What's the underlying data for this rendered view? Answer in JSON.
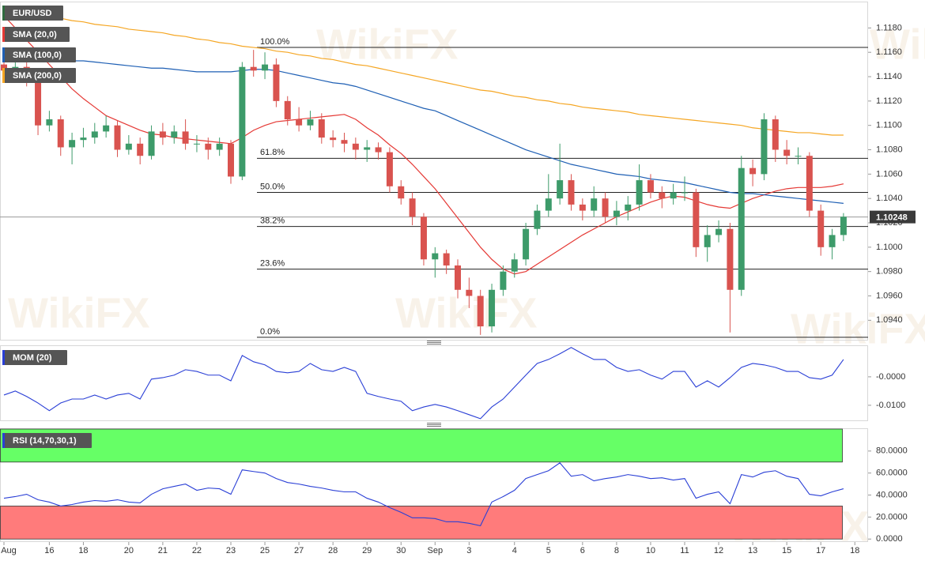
{
  "watermark": "WikiFX",
  "chart_data": [
    {
      "type": "candlestick",
      "title": "EUR/USD",
      "categories": [
        "Aug",
        null,
        null,
        null,
        "16",
        null,
        null,
        "18",
        null,
        null,
        null,
        "20",
        null,
        null,
        "21",
        null,
        null,
        "22",
        null,
        null,
        "23",
        null,
        null,
        "25",
        null,
        null,
        "27",
        null,
        null,
        "28",
        null,
        null,
        "29",
        null,
        null,
        "30",
        null,
        null,
        "Sep",
        null,
        null,
        "3",
        null,
        null,
        null,
        "4",
        null,
        null,
        "5",
        null,
        null,
        "6",
        null,
        null,
        "8",
        null,
        null,
        "10",
        null,
        null,
        "11",
        null,
        null,
        "12",
        null,
        null,
        "13",
        null,
        null,
        "15",
        null,
        null,
        "17",
        null,
        null,
        "18"
      ],
      "open": [
        1.115,
        1.1145,
        1.1148,
        1.114,
        1.11,
        1.1105,
        1.1082,
        1.1088,
        1.109,
        1.1095,
        1.11,
        1.108,
        1.1085,
        1.1075,
        1.1095,
        1.109,
        1.1095,
        1.1085,
        1.1085,
        1.108,
        1.1085,
        1.1058,
        1.1148,
        1.1145,
        1.115,
        1.112,
        1.1105,
        1.11,
        1.1105,
        1.109,
        1.1088,
        1.1085,
        1.108,
        1.1082,
        1.1078,
        1.105,
        1.104,
        1.1025,
        1.099,
        1.0995,
        1.0985,
        1.0965,
        1.096,
        1.0935,
        1.0965,
        1.098,
        1.099,
        1.1015,
        1.103,
        1.104,
        1.1055,
        1.1035,
        1.103,
        1.104,
        1.1025,
        1.103,
        1.1035,
        1.1055,
        1.1045,
        1.104,
        1.1045,
        1.1045,
        1.1,
        1.101,
        1.1015,
        1.0965,
        1.1065,
        1.106,
        1.1105,
        1.108,
        1.1075,
        1.1075,
        1.103,
        1.1,
        1.101,
        null
      ],
      "high": [
        1.1158,
        1.1155,
        1.1152,
        1.1142,
        1.1112,
        1.1108,
        1.1094,
        1.1098,
        1.1102,
        1.1108,
        1.1104,
        1.1092,
        1.109,
        1.11,
        1.1102,
        1.11,
        1.1105,
        1.1092,
        1.109,
        1.109,
        1.1088,
        1.1152,
        1.1162,
        1.116,
        1.1155,
        1.1124,
        1.1115,
        1.1112,
        1.111,
        1.1096,
        1.1094,
        1.109,
        1.1088,
        1.1086,
        1.1082,
        1.1055,
        1.1045,
        1.1028,
        1.1,
        1.0998,
        1.099,
        1.0975,
        1.0965,
        1.097,
        1.0985,
        1.0995,
        1.102,
        1.1035,
        1.106,
        1.1085,
        1.106,
        1.104,
        1.105,
        1.1045,
        1.1038,
        1.1042,
        1.1068,
        1.106,
        1.105,
        1.1052,
        1.1058,
        1.1048,
        1.1018,
        1.1022,
        1.102,
        1.1075,
        1.1072,
        1.111,
        1.1108,
        1.1088,
        1.1082,
        1.1078,
        1.1035,
        1.1015,
        1.1028,
        null
      ],
      "low": [
        1.1135,
        1.114,
        1.1132,
        1.1092,
        1.1095,
        1.1075,
        1.1068,
        1.1082,
        1.1085,
        1.109,
        1.1074,
        1.1076,
        1.1068,
        1.1072,
        1.1084,
        1.1085,
        1.108,
        1.1078,
        1.1072,
        1.1075,
        1.1052,
        1.1055,
        1.114,
        1.1138,
        1.1115,
        1.11,
        1.1095,
        1.1096,
        1.1085,
        1.1082,
        1.1078,
        1.1072,
        1.107,
        1.1072,
        1.1045,
        1.1035,
        1.1018,
        1.0985,
        1.0975,
        1.0978,
        1.0958,
        1.095,
        1.0928,
        1.093,
        1.096,
        1.0975,
        1.0985,
        1.101,
        1.1025,
        1.1035,
        1.103,
        1.1022,
        1.1025,
        1.102,
        1.1018,
        1.1022,
        1.103,
        1.104,
        1.1032,
        1.1035,
        1.1038,
        1.0992,
        1.0988,
        1.1004,
        1.093,
        1.096,
        1.105,
        1.1055,
        1.107,
        1.1068,
        1.1068,
        1.1025,
        1.0993,
        1.099,
        1.1005,
        null
      ],
      "close": [
        1.1145,
        1.1148,
        1.114,
        1.11,
        1.1105,
        1.1082,
        1.1088,
        1.109,
        1.1095,
        1.11,
        1.108,
        1.1085,
        1.1075,
        1.1095,
        1.109,
        1.1095,
        1.1085,
        1.1085,
        1.108,
        1.1085,
        1.1058,
        1.1148,
        1.1145,
        1.115,
        1.112,
        1.1105,
        1.11,
        1.1105,
        1.109,
        1.1088,
        1.1085,
        1.108,
        1.1082,
        1.1078,
        1.105,
        1.104,
        1.1025,
        1.099,
        1.0995,
        1.0985,
        1.0965,
        1.096,
        1.0935,
        1.0965,
        1.098,
        1.099,
        1.1015,
        1.103,
        1.104,
        1.1055,
        1.1035,
        1.103,
        1.104,
        1.1025,
        1.103,
        1.1035,
        1.1055,
        1.1045,
        1.104,
        1.1045,
        1.1045,
        1.1,
        1.101,
        1.1015,
        1.0965,
        1.1065,
        1.106,
        1.1105,
        1.108,
        1.1075,
        1.1075,
        1.103,
        1.1,
        1.101,
        1.1025,
        null
      ],
      "up_color": "#3d9b6a",
      "down_color": "#d9534f",
      "series": [
        {
          "name": "SMA (20,0)",
          "color": "#e53935",
          "values": [
            1.119,
            1.118,
            1.117,
            1.116,
            1.115,
            1.114,
            1.113,
            1.1122,
            1.1115,
            1.1108,
            1.1104,
            1.11,
            1.1096,
            1.1093,
            1.1092,
            1.109,
            1.1089,
            1.1088,
            1.1087,
            1.1086,
            1.1085,
            1.109,
            1.1096,
            1.11,
            1.1103,
            1.1104,
            1.1105,
            1.1106,
            1.1107,
            1.1108,
            1.1109,
            1.1105,
            1.1098,
            1.1092,
            1.1084,
            1.1077,
            1.1068,
            1.1058,
            1.1048,
            1.1036,
            1.1024,
            1.1012,
            1.1,
            1.099,
            1.0982,
            1.0978,
            1.098,
            1.0986,
            1.0992,
            1.0998,
            1.1004,
            1.101,
            1.1015,
            1.102,
            1.1025,
            1.1029,
            1.1033,
            1.1037,
            1.104,
            1.1042,
            1.1041,
            1.1038,
            1.1035,
            1.1033,
            1.1032,
            1.1036,
            1.104,
            1.1043,
            1.1046,
            1.1048,
            1.1049,
            1.1049,
            1.1049,
            1.105,
            1.1052,
            null
          ]
        },
        {
          "name": "SMA (100,0)",
          "color": "#1e5fb4",
          "values": [
            1.1159,
            1.1158,
            1.1157,
            1.1156,
            1.1155,
            1.1154,
            1.1153,
            1.1153,
            1.1152,
            1.1151,
            1.115,
            1.1149,
            1.1148,
            1.1147,
            1.1147,
            1.1146,
            1.1145,
            1.1144,
            1.1144,
            1.1144,
            1.1144,
            1.1145,
            1.1146,
            1.1146,
            1.1145,
            1.1143,
            1.1141,
            1.1139,
            1.1137,
            1.1135,
            1.1134,
            1.1132,
            1.1129,
            1.1126,
            1.1123,
            1.112,
            1.1117,
            1.1114,
            1.1112,
            1.1108,
            1.1104,
            1.11,
            1.1096,
            1.1092,
            1.1088,
            1.1084,
            1.108,
            1.1077,
            1.1074,
            1.1071,
            1.1068,
            1.1066,
            1.1064,
            1.1062,
            1.106,
            1.1059,
            1.1058,
            1.1056,
            1.1055,
            1.1054,
            1.1053,
            1.1051,
            1.1049,
            1.1047,
            1.1045,
            1.1044,
            1.1044,
            1.1043,
            1.1042,
            1.1041,
            1.104,
            1.1039,
            1.1038,
            1.1037,
            1.1036,
            null
          ]
        },
        {
          "name": "SMA (200,0)",
          "color": "#f5a623",
          "values": [
            1.1198,
            1.1196,
            1.1194,
            1.1192,
            1.119,
            1.1188,
            1.1186,
            1.1185,
            1.1183,
            1.1182,
            1.1181,
            1.1179,
            1.1178,
            1.1177,
            1.1176,
            1.1174,
            1.1173,
            1.1171,
            1.117,
            1.1168,
            1.1167,
            1.1165,
            1.1164,
            1.1163,
            1.1161,
            1.116,
            1.1158,
            1.1157,
            1.1155,
            1.1154,
            1.1152,
            1.115,
            1.1149,
            1.1147,
            1.1145,
            1.1143,
            1.1141,
            1.1139,
            1.1137,
            1.1135,
            1.1133,
            1.1131,
            1.1129,
            1.1128,
            1.1126,
            1.1124,
            1.1123,
            1.1121,
            1.112,
            1.1118,
            1.1117,
            1.1115,
            1.1114,
            1.1113,
            1.1112,
            1.1111,
            1.1109,
            1.1108,
            1.1107,
            1.1106,
            1.1105,
            1.1104,
            1.1103,
            1.1102,
            1.1101,
            1.11,
            1.1098,
            1.1097,
            1.1096,
            1.1095,
            1.1094,
            1.1094,
            1.1093,
            1.1092,
            1.1092,
            null
          ]
        }
      ],
      "fib_levels": [
        {
          "level": "100.0%",
          "price": 1.1164
        },
        {
          "level": "61.8%",
          "price": 1.1073
        },
        {
          "level": "50.0%",
          "price": 1.1045
        },
        {
          "level": "38.2%",
          "price": 1.1017
        },
        {
          "level": "23.6%",
          "price": 1.0982
        },
        {
          "level": "0.0%",
          "price": 1.0926
        }
      ],
      "last_price": 1.10248,
      "ylim": [
        1.0924,
        1.1201
      ],
      "yticks": [
        {
          "value": 1.094,
          "label": "1.0940"
        },
        {
          "value": 1.096,
          "label": "1.0960"
        },
        {
          "value": 1.098,
          "label": "1.0980"
        },
        {
          "value": 1.1,
          "label": "1.1000"
        },
        {
          "value": 1.102,
          "label": "1.1020"
        },
        {
          "value": 1.104,
          "label": "1.1040"
        },
        {
          "value": 1.106,
          "label": "1.1060"
        },
        {
          "value": 1.108,
          "label": "1.1080"
        },
        {
          "value": 1.11,
          "label": "1.1100"
        },
        {
          "value": 1.112,
          "label": "1.1120"
        },
        {
          "value": 1.114,
          "label": "1.1140"
        },
        {
          "value": 1.116,
          "label": "1.1160"
        },
        {
          "value": 1.118,
          "label": "1.1180"
        }
      ]
    },
    {
      "type": "line",
      "title": "MOM (20)",
      "color": "#2a3fd6",
      "values": [
        -0.0064,
        -0.005,
        -0.0069,
        -0.0092,
        -0.0119,
        -0.0092,
        -0.0078,
        -0.0078,
        -0.0064,
        -0.0078,
        -0.0064,
        -0.0058,
        -0.0078,
        -0.0008,
        -0.0003,
        0.0006,
        0.0025,
        0.0019,
        0.0006,
        0.0006,
        -0.0014,
        0.0075,
        0.0053,
        0.0042,
        0.0019,
        0.0014,
        0.0019,
        0.0047,
        0.0025,
        0.0019,
        0.0033,
        0.0019,
        -0.0058,
        -0.0069,
        -0.0078,
        -0.0086,
        -0.0119,
        -0.0106,
        -0.0097,
        -0.0106,
        -0.0119,
        -0.0133,
        -0.0147,
        -0.0106,
        -0.0078,
        -0.0036,
        0.0006,
        0.0047,
        0.0061,
        0.0081,
        0.0103,
        0.0081,
        0.0061,
        0.0061,
        0.0033,
        0.0019,
        0.0025,
        0.0006,
        -0.0008,
        0.0019,
        0.0019,
        -0.0036,
        -0.0014,
        -0.0036,
        -0.0003,
        0.0033,
        0.0047,
        0.0042,
        0.0033,
        0.0019,
        0.0019,
        -0.0003,
        -0.0008,
        0.0006,
        0.0061,
        null
      ],
      "ylim": [
        -0.0153,
        0.0108
      ],
      "yticks": [
        {
          "value": 0,
          "label": "-0.0000"
        },
        {
          "value": -0.01,
          "label": "-0.0100"
        }
      ]
    },
    {
      "type": "line",
      "title": "RSI (14,70,30,1)",
      "color": "#2a3fd6",
      "values": [
        37.1,
        38.6,
        40.7,
        35.7,
        33.6,
        30.0,
        31.4,
        33.6,
        35.0,
        34.3,
        35.7,
        33.6,
        32.9,
        40.7,
        45.7,
        47.9,
        50.0,
        44.3,
        46.4,
        45.7,
        40.7,
        62.9,
        61.4,
        60.0,
        55.0,
        51.4,
        50.0,
        47.9,
        46.4,
        44.3,
        42.9,
        42.9,
        37.1,
        33.6,
        28.6,
        24.3,
        19.3,
        19.3,
        18.6,
        15.7,
        15.7,
        14.3,
        12.1,
        33.6,
        38.6,
        44.3,
        55.0,
        58.6,
        62.1,
        69.3,
        57.1,
        58.6,
        52.9,
        55.0,
        56.4,
        58.6,
        57.1,
        55.0,
        55.7,
        53.6,
        55.0,
        37.1,
        40.7,
        42.9,
        32.1,
        58.6,
        56.4,
        60.7,
        62.1,
        57.1,
        55.0,
        40.7,
        39.3,
        42.9,
        45.7,
        null
      ],
      "bands": [
        {
          "from": 70,
          "to": 100,
          "color": "#66ff66"
        },
        {
          "from": 0,
          "to": 30,
          "color": "#ff7b7b"
        }
      ],
      "ylim": [
        -2,
        100
      ],
      "yticks": [
        {
          "value": 80,
          "label": "80.0000"
        },
        {
          "value": 60,
          "label": "60.0000"
        },
        {
          "value": 40,
          "label": "40.0000"
        },
        {
          "value": 20,
          "label": "20.0000"
        },
        {
          "value": 0,
          "label": "0.0000"
        }
      ]
    }
  ]
}
